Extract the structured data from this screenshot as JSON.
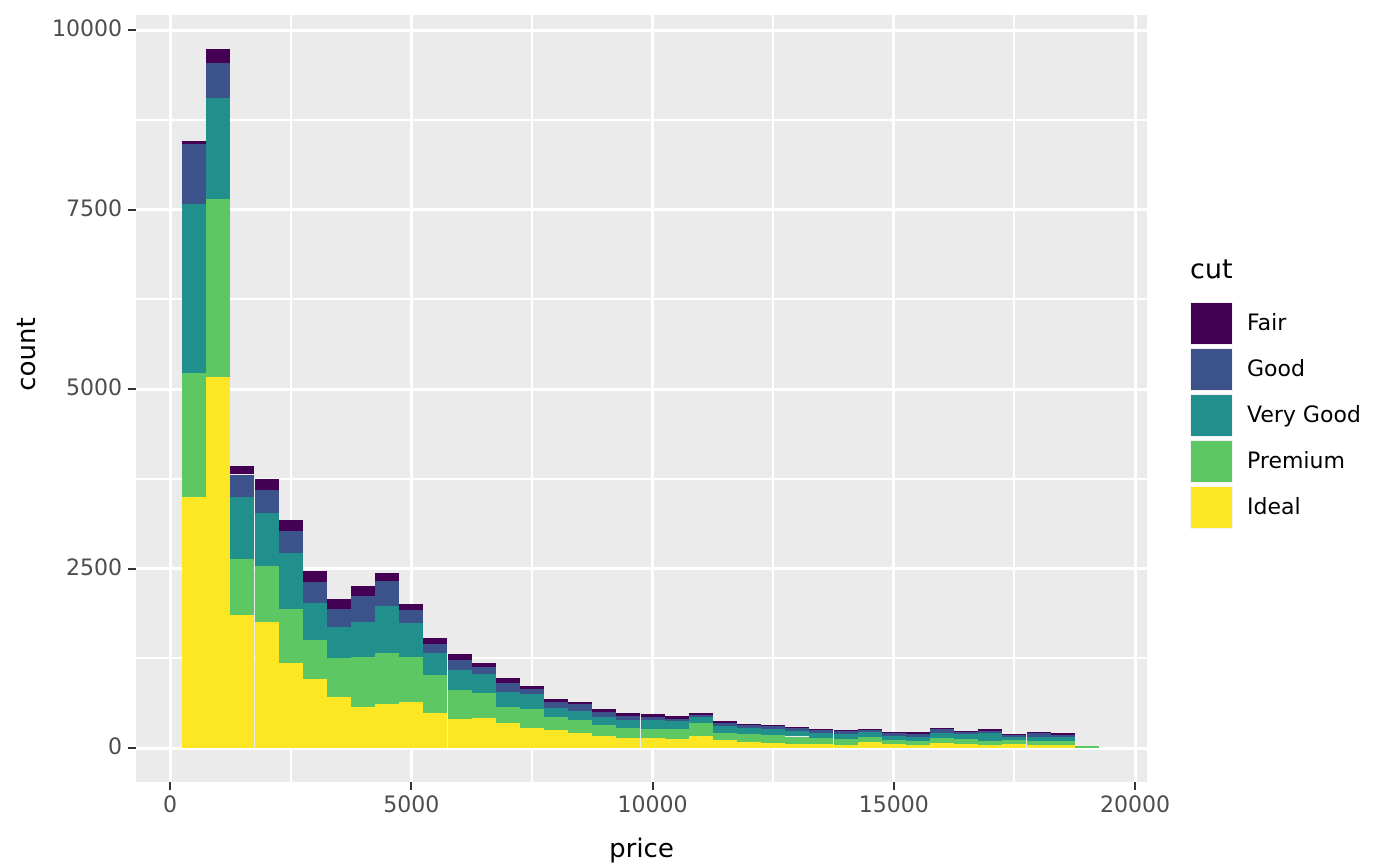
{
  "chart_data": {
    "type": "bar",
    "subtype": "stacked-histogram",
    "title": "",
    "xlabel": "price",
    "ylabel": "count",
    "legend_title": "cut",
    "legend_position": "right",
    "grid": true,
    "panel_bg": "#EBEBEB",
    "grid_color": "#FFFFFF",
    "tick_color": "#333333",
    "axis_text_color": "#4D4D4D",
    "axis_title_color": "#000000",
    "x_ticks": [
      0,
      5000,
      10000,
      15000,
      20000
    ],
    "x_minor": [
      2500,
      7500,
      12500,
      17500
    ],
    "y_ticks": [
      0,
      2500,
      5000,
      7500,
      10000
    ],
    "y_minor": [
      1250,
      3750,
      6250,
      8750
    ],
    "xlim": [
      -705,
      20248
    ],
    "ylim": [
      -474,
      10209
    ],
    "binwidth": 500,
    "bin_centers": [
      500,
      1000,
      1500,
      2000,
      2500,
      3000,
      3500,
      4000,
      4500,
      5000,
      5500,
      6000,
      6500,
      7000,
      7500,
      8000,
      8500,
      9000,
      9500,
      10000,
      10500,
      11000,
      11500,
      12000,
      12500,
      13000,
      13500,
      14000,
      14500,
      15000,
      15500,
      16000,
      16500,
      17000,
      17500,
      18000,
      18500,
      19000
    ],
    "stack_order_bottom_to_top": [
      "Ideal",
      "Premium",
      "Very Good",
      "Good",
      "Fair"
    ],
    "series": [
      {
        "name": "Fair",
        "color": "#440154",
        "values": [
          42,
          195,
          116,
          149,
          149,
          148,
          139,
          139,
          107,
          79,
          84,
          79,
          56,
          78,
          47,
          33,
          35,
          33,
          37,
          33,
          30,
          32,
          24,
          18,
          19,
          19,
          19,
          18,
          14,
          22,
          24,
          9,
          14,
          19,
          14,
          22,
          24,
          0
        ]
      },
      {
        "name": "Good",
        "color": "#3B528B",
        "values": [
          835,
          488,
          316,
          316,
          315,
          302,
          242,
          357,
          344,
          177,
          125,
          140,
          98,
          117,
          65,
          92,
          100,
          79,
          56,
          46,
          40,
          33,
          46,
          42,
          46,
          40,
          37,
          38,
          32,
          38,
          37,
          60,
          36,
          28,
          28,
          47,
          32,
          0
        ]
      },
      {
        "name": "Very Good",
        "color": "#21908C",
        "values": [
          2358,
          1405,
          860,
          743,
          780,
          511,
          441,
          488,
          663,
          482,
          302,
          278,
          256,
          209,
          213,
          126,
          115,
          107,
          116,
          130,
          112,
          75,
          93,
          79,
          79,
          78,
          74,
          70,
          70,
          56,
          56,
          70,
          70,
          116,
          38,
          56,
          47,
          0
        ]
      },
      {
        "name": "Premium",
        "color": "#5DC863",
        "values": [
          1720,
          2476,
          780,
          775,
          744,
          547,
          534,
          697,
          706,
          618,
          534,
          408,
          356,
          231,
          265,
          176,
          190,
          153,
          139,
          125,
          128,
          185,
          102,
          107,
          107,
          100,
          90,
          80,
          70,
          55,
          56,
          70,
          65,
          55,
          60,
          60,
          56,
          25
        ]
      },
      {
        "name": "Ideal",
        "color": "#FDE725",
        "values": [
          3500,
          5172,
          1853,
          1760,
          1188,
          957,
          715,
          575,
          613,
          645,
          483,
          400,
          414,
          344,
          274,
          251,
          205,
          167,
          135,
          135,
          130,
          167,
          111,
          88,
          74,
          60,
          50,
          45,
          79,
          56,
          46,
          65,
          56,
          42,
          51,
          42,
          46,
          0
        ]
      }
    ]
  },
  "legend": {
    "title": "cut",
    "items": [
      {
        "label": "Fair",
        "color": "#440154"
      },
      {
        "label": "Good",
        "color": "#3B528B"
      },
      {
        "label": "Very Good",
        "color": "#21908C"
      },
      {
        "label": "Premium",
        "color": "#5DC863"
      },
      {
        "label": "Ideal",
        "color": "#FDE725"
      }
    ]
  },
  "axes": {
    "x_title": "price",
    "y_title": "count"
  }
}
